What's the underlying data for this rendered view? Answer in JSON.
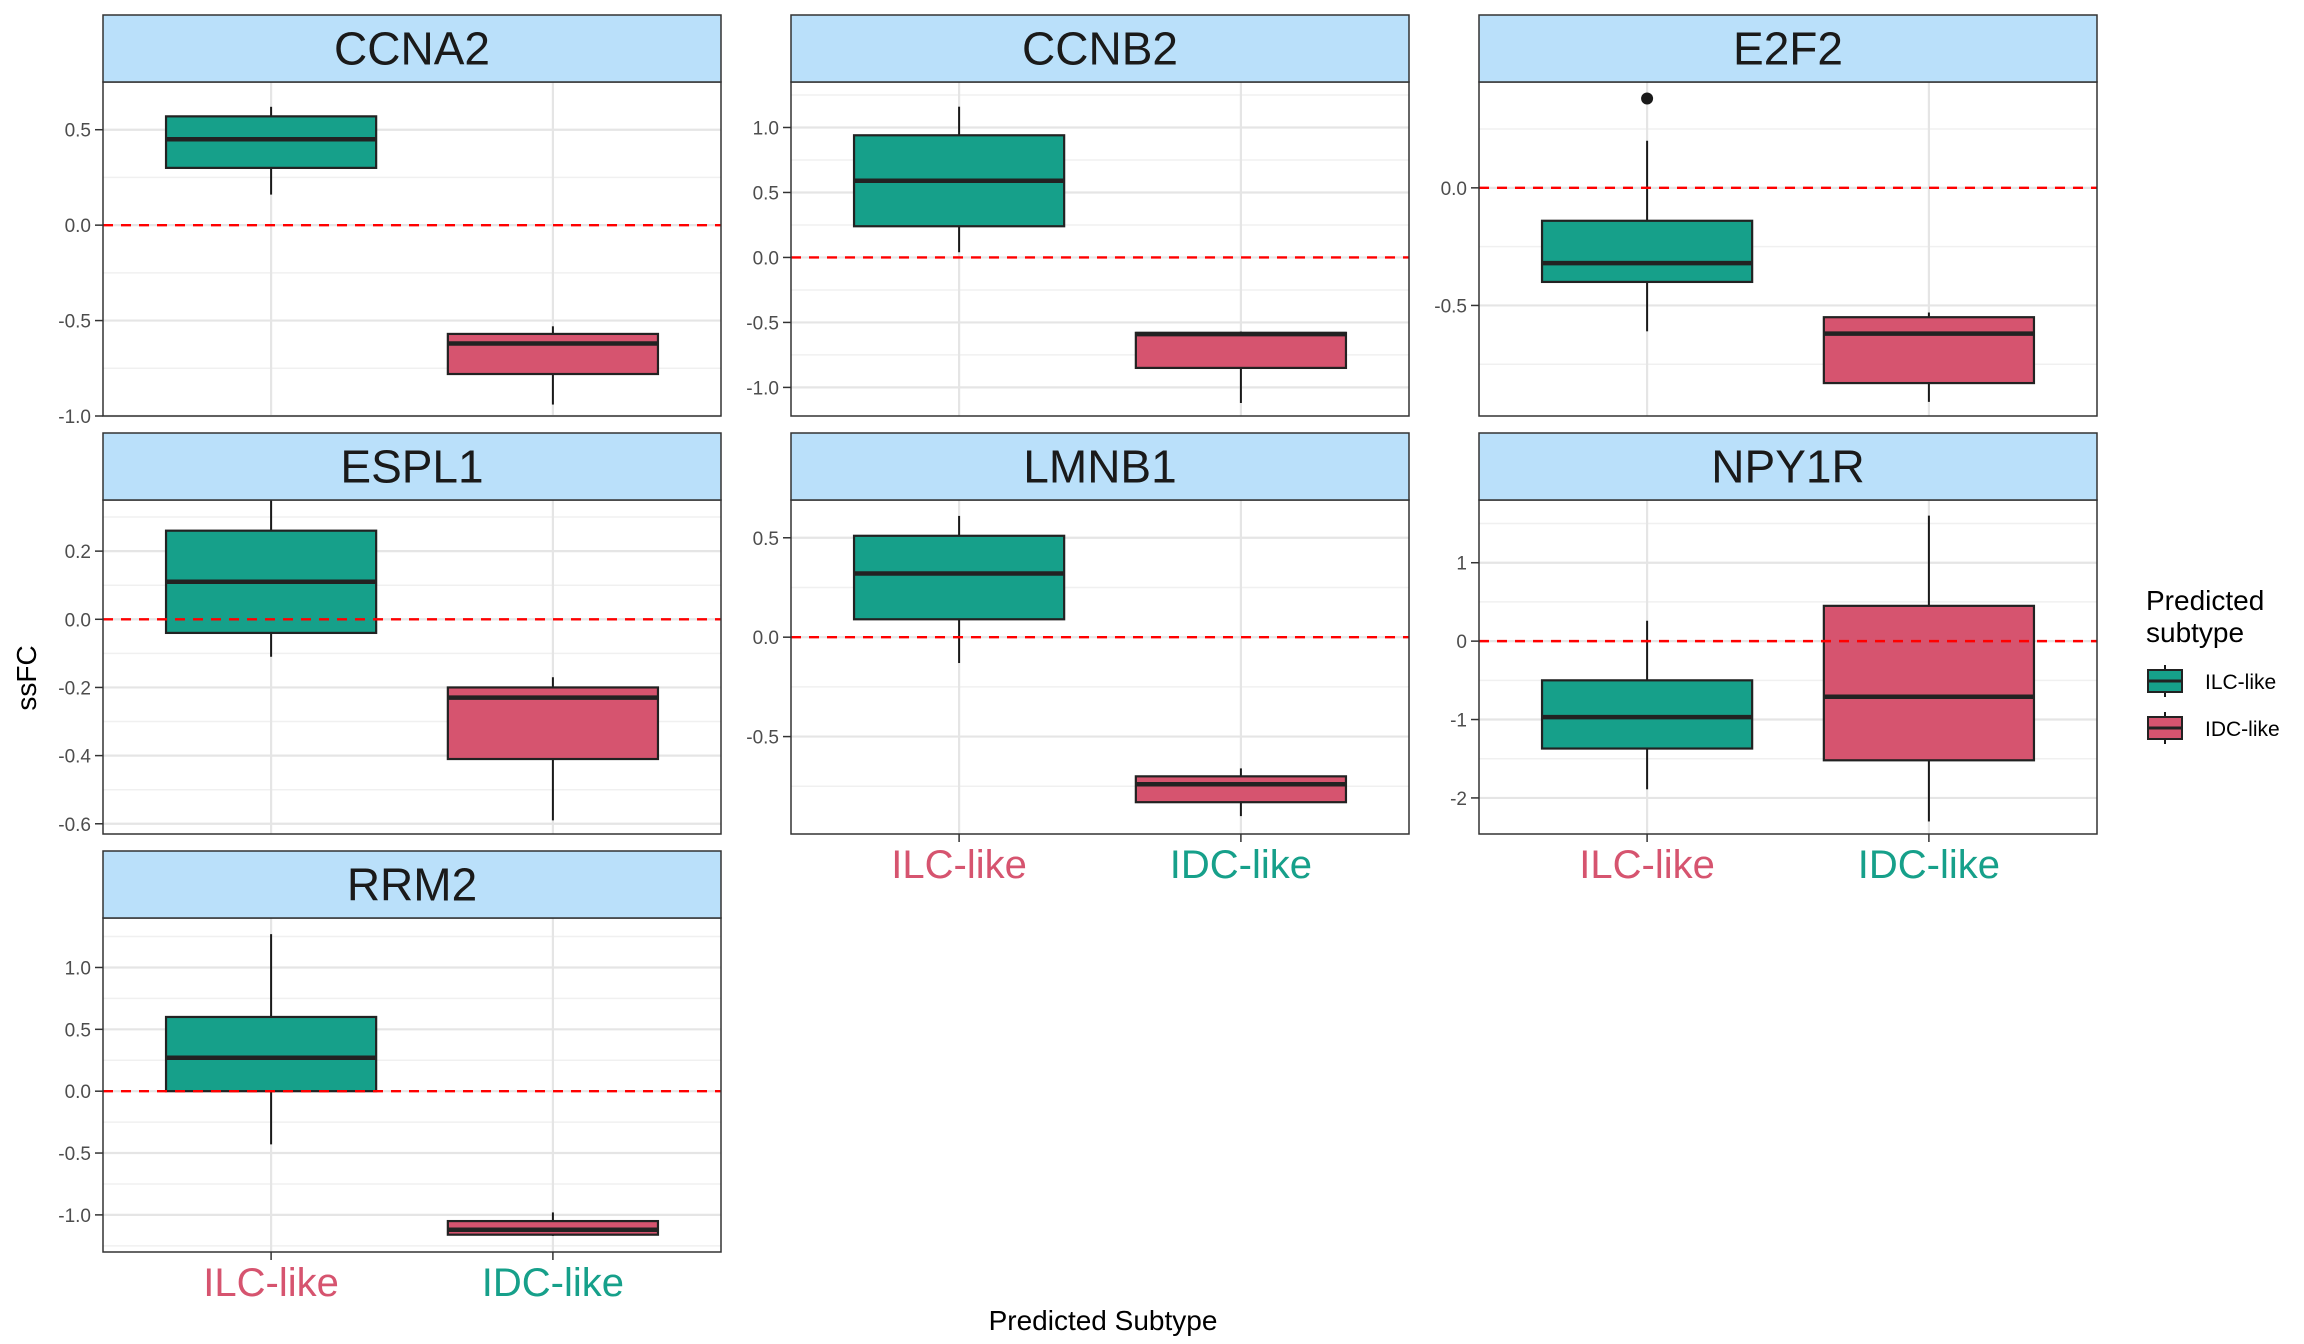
{
  "chart_data": {
    "type": "boxplot",
    "xlabel": "Predicted Subtype",
    "ylabel": "ssFC",
    "categories": [
      "ILC-like",
      "IDC-like"
    ],
    "category_label_colors": [
      "#D6546F",
      "#16A08A"
    ],
    "fill_colors": {
      "ILC-like": "#16A08A",
      "IDC-like": "#D6546F"
    },
    "reference_line": {
      "y": 0,
      "color": "#FF0000",
      "style": "dashed"
    },
    "strip_color": "#BAE0FA",
    "legend": {
      "title_lines": [
        "Predicted",
        "subtype"
      ],
      "items": [
        {
          "label": "ILC-like",
          "color": "#16A08A"
        },
        {
          "label": "IDC-like",
          "color": "#D6546F"
        }
      ],
      "position": "right"
    },
    "panels": [
      {
        "name": "CCNA2",
        "ylim": [
          -1.0,
          0.75
        ],
        "ticks": [
          {
            "v": 0.5,
            "label": "0.5"
          },
          {
            "v": 0.0,
            "label": "0.0"
          },
          {
            "v": -0.5,
            "label": "-0.5"
          },
          {
            "v": -1.0,
            "label": "-1.0"
          }
        ],
        "show_x_labels": false,
        "boxes": [
          {
            "group": "ILC-like",
            "min": 0.16,
            "q1": 0.3,
            "median": 0.45,
            "q3": 0.57,
            "max": 0.62,
            "outliers": []
          },
          {
            "group": "IDC-like",
            "min": -0.94,
            "q1": -0.78,
            "median": -0.62,
            "q3": -0.57,
            "max": -0.53,
            "outliers": []
          }
        ]
      },
      {
        "name": "CCNB2",
        "ylim": [
          -1.22,
          1.35
        ],
        "ticks": [
          {
            "v": 1.0,
            "label": "1.0"
          },
          {
            "v": 0.5,
            "label": "0.5"
          },
          {
            "v": 0.0,
            "label": "0.0"
          },
          {
            "v": -0.5,
            "label": "-0.5"
          },
          {
            "v": -1.0,
            "label": "-1.0"
          }
        ],
        "show_x_labels": false,
        "boxes": [
          {
            "group": "ILC-like",
            "min": 0.04,
            "q1": 0.24,
            "median": 0.59,
            "q3": 0.94,
            "max": 1.16,
            "outliers": []
          },
          {
            "group": "IDC-like",
            "min": -1.12,
            "q1": -0.85,
            "median": -0.59,
            "q3": -0.58,
            "max": -0.57,
            "outliers": []
          }
        ]
      },
      {
        "name": "E2F2",
        "ylim": [
          -0.97,
          0.45
        ],
        "ticks": [
          {
            "v": 0.0,
            "label": "0.0"
          },
          {
            "v": -0.5,
            "label": "-0.5"
          }
        ],
        "show_x_labels": false,
        "boxes": [
          {
            "group": "ILC-like",
            "min": -0.61,
            "q1": -0.4,
            "median": -0.32,
            "q3": -0.14,
            "max": 0.2,
            "outliers": [
              0.38
            ]
          },
          {
            "group": "IDC-like",
            "min": -0.91,
            "q1": -0.83,
            "median": -0.62,
            "q3": -0.55,
            "max": -0.53,
            "outliers": []
          }
        ]
      },
      {
        "name": "ESPL1",
        "ylim": [
          -0.63,
          0.35
        ],
        "ticks": [
          {
            "v": 0.2,
            "label": "0.2"
          },
          {
            "v": 0.0,
            "label": "0.0"
          },
          {
            "v": -0.2,
            "label": "-0.2"
          },
          {
            "v": -0.4,
            "label": "-0.4"
          },
          {
            "v": -0.6,
            "label": "-0.6"
          }
        ],
        "show_x_labels": false,
        "boxes": [
          {
            "group": "ILC-like",
            "min": -0.11,
            "q1": -0.04,
            "median": 0.11,
            "q3": 0.26,
            "max": 0.35,
            "outliers": []
          },
          {
            "group": "IDC-like",
            "min": -0.59,
            "q1": -0.41,
            "median": -0.23,
            "q3": -0.2,
            "max": -0.17,
            "outliers": []
          }
        ]
      },
      {
        "name": "LMNB1",
        "ylim": [
          -0.99,
          0.69
        ],
        "ticks": [
          {
            "v": 0.5,
            "label": "0.5"
          },
          {
            "v": 0.0,
            "label": "0.0"
          },
          {
            "v": -0.5,
            "label": "-0.5"
          }
        ],
        "show_x_labels": true,
        "boxes": [
          {
            "group": "ILC-like",
            "min": -0.13,
            "q1": 0.09,
            "median": 0.32,
            "q3": 0.51,
            "max": 0.61,
            "outliers": []
          },
          {
            "group": "IDC-like",
            "min": -0.9,
            "q1": -0.83,
            "median": -0.74,
            "q3": -0.7,
            "max": -0.66,
            "outliers": []
          }
        ]
      },
      {
        "name": "NPY1R",
        "ylim": [
          -2.46,
          1.8
        ],
        "ticks": [
          {
            "v": 1,
            "label": "1"
          },
          {
            "v": 0,
            "label": "0"
          },
          {
            "v": -1,
            "label": "-1"
          },
          {
            "v": -2,
            "label": "-2"
          }
        ],
        "show_x_labels": true,
        "boxes": [
          {
            "group": "ILC-like",
            "min": -1.89,
            "q1": -1.37,
            "median": -0.97,
            "q3": -0.5,
            "max": 0.26,
            "outliers": []
          },
          {
            "group": "IDC-like",
            "min": -2.3,
            "q1": -1.52,
            "median": -0.71,
            "q3": 0.45,
            "max": 1.6,
            "outliers": []
          }
        ]
      },
      {
        "name": "RRM2",
        "ylim": [
          -1.3,
          1.4
        ],
        "ticks": [
          {
            "v": 1.0,
            "label": "1.0"
          },
          {
            "v": 0.5,
            "label": "0.5"
          },
          {
            "v": 0.0,
            "label": "0.0"
          },
          {
            "v": -0.5,
            "label": "-0.5"
          },
          {
            "v": -1.0,
            "label": "-1.0"
          }
        ],
        "show_x_labels": true,
        "boxes": [
          {
            "group": "ILC-like",
            "min": -0.43,
            "q1": 0.0,
            "median": 0.27,
            "q3": 0.6,
            "max": 1.27,
            "outliers": []
          },
          {
            "group": "IDC-like",
            "min": -1.17,
            "q1": -1.16,
            "median": -1.12,
            "q3": -1.05,
            "max": -0.98,
            "outliers": []
          }
        ]
      }
    ]
  }
}
